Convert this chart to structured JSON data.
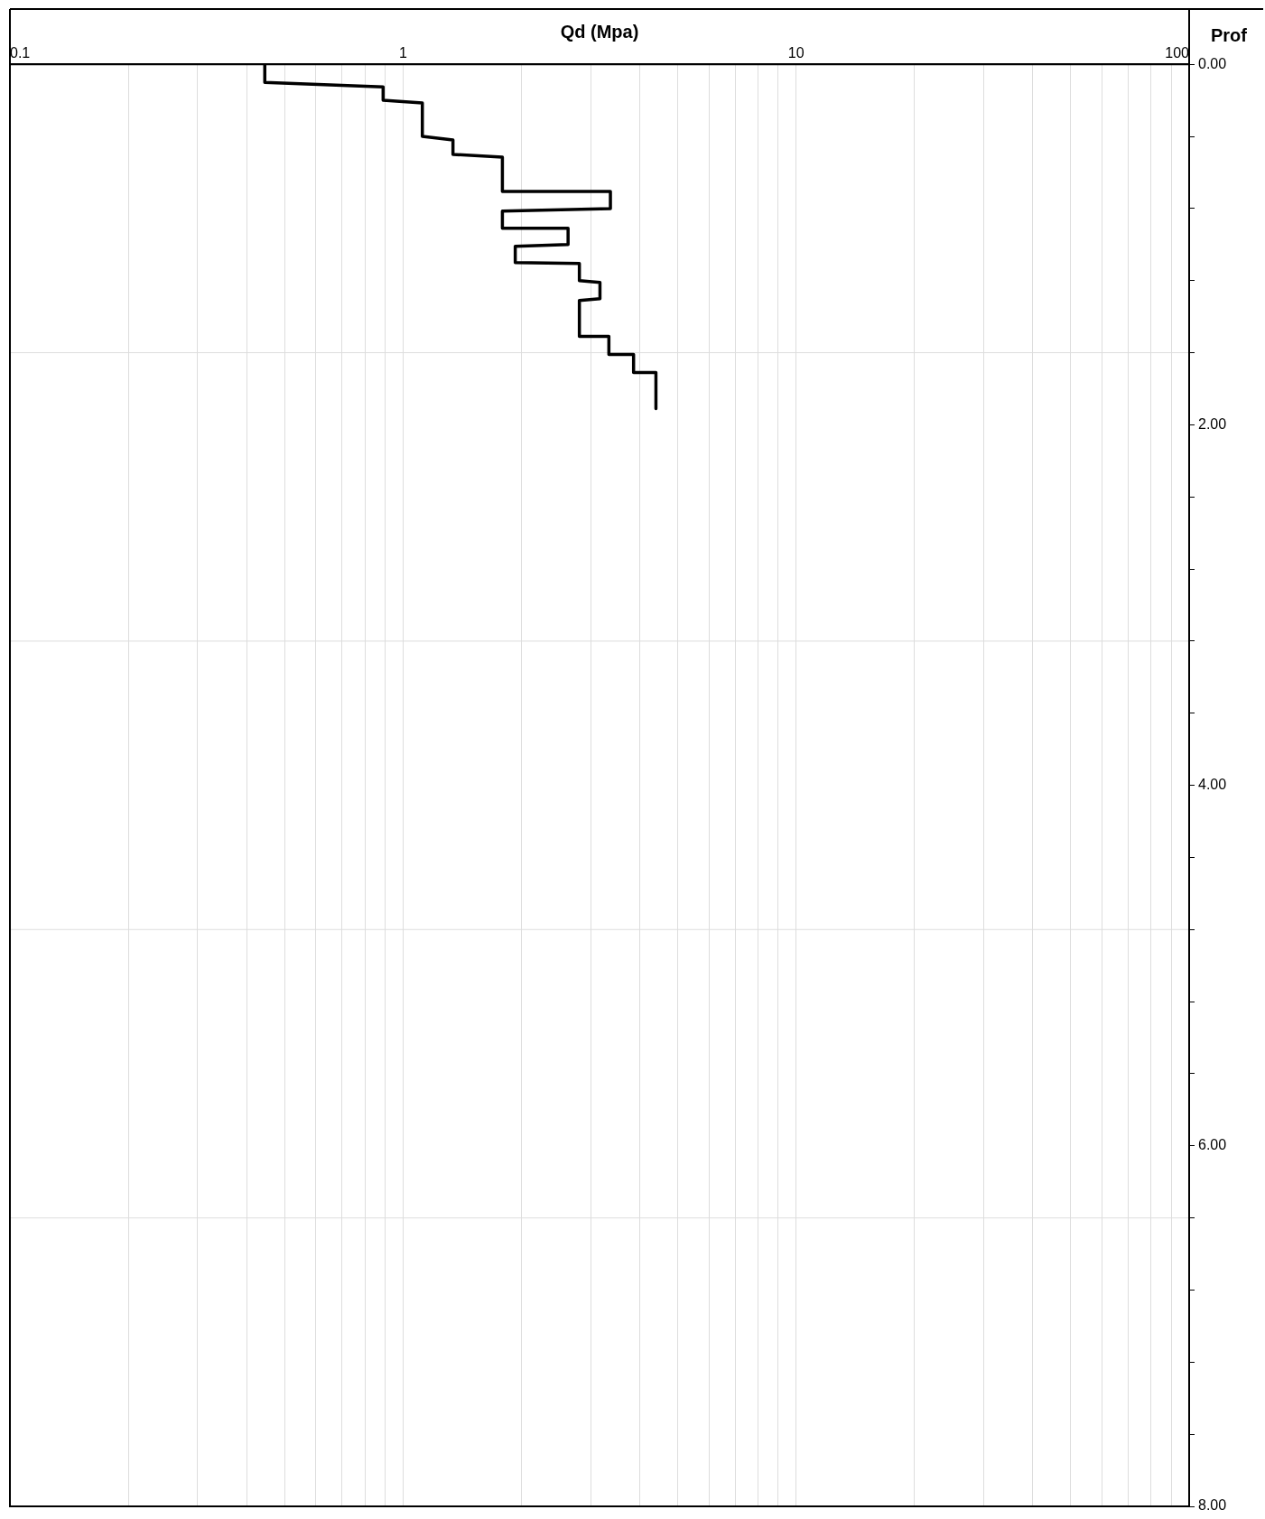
{
  "chart_data": {
    "type": "line",
    "xlabel": "Qd (Mpa)",
    "ylabel": "Prof",
    "log": "x",
    "grid": "x",
    "marker": "none",
    "line_style": "solid",
    "xlim": [
      0.1,
      100
    ],
    "xticks": [
      {
        "value": 0.1,
        "label": "0.1"
      },
      {
        "value": 0.2,
        "label": null
      },
      {
        "value": 0.3,
        "label": null
      },
      {
        "value": 0.4,
        "label": null
      },
      {
        "value": 0.5,
        "label": null
      },
      {
        "value": 0.6,
        "label": null
      },
      {
        "value": 0.7,
        "label": null
      },
      {
        "value": 0.8,
        "label": null
      },
      {
        "value": 0.9,
        "label": null
      },
      {
        "value": 1,
        "label": "1"
      },
      {
        "value": 2,
        "label": null
      },
      {
        "value": 3,
        "label": null
      },
      {
        "value": 4,
        "label": null
      },
      {
        "value": 5,
        "label": null
      },
      {
        "value": 6,
        "label": null
      },
      {
        "value": 7,
        "label": null
      },
      {
        "value": 8,
        "label": null
      },
      {
        "value": 9,
        "label": null
      },
      {
        "value": 10,
        "label": "10"
      },
      {
        "value": 20,
        "label": null
      },
      {
        "value": 30,
        "label": null
      },
      {
        "value": 40,
        "label": null
      },
      {
        "value": 50,
        "label": null
      },
      {
        "value": 60,
        "label": null
      },
      {
        "value": 70,
        "label": null
      },
      {
        "value": 80,
        "label": null
      },
      {
        "value": 90,
        "label": null
      },
      {
        "value": 100,
        "label": "100"
      }
    ],
    "ylim": [
      8,
      0
    ],
    "yticks": [
      {
        "value": 0,
        "label": "0.00"
      },
      {
        "value": 0.4,
        "label": null
      },
      {
        "value": 0.8,
        "label": null
      },
      {
        "value": 1.2,
        "label": null
      },
      {
        "value": 1.6,
        "label": null
      },
      {
        "value": 2,
        "label": "2.00"
      },
      {
        "value": 2.4,
        "label": null
      },
      {
        "value": 2.8,
        "label": null
      },
      {
        "value": 3.2,
        "label": null
      },
      {
        "value": 3.6,
        "label": null
      },
      {
        "value": 4,
        "label": "4.00"
      },
      {
        "value": 4.4,
        "label": null
      },
      {
        "value": 4.8,
        "label": null
      },
      {
        "value": 5.2,
        "label": null
      },
      {
        "value": 5.6,
        "label": null
      },
      {
        "value": 6,
        "label": "6.00"
      },
      {
        "value": 6.4,
        "label": null
      },
      {
        "value": 6.8,
        "label": null
      },
      {
        "value": 7.2,
        "label": null
      },
      {
        "value": 7.6,
        "label": null
      },
      {
        "value": 8,
        "label": "8.00"
      }
    ],
    "ref_lines": [
      {
        "axis": "y",
        "value": 1.6,
        "color": "#dddddd"
      },
      {
        "axis": "y",
        "value": 3.2,
        "color": "#dddddd"
      },
      {
        "axis": "y",
        "value": 4.8,
        "color": "#dddddd"
      },
      {
        "axis": "y",
        "value": 6.4,
        "color": "#dddddd"
      }
    ],
    "series": [
      {
        "color": "#000000",
        "x": [
          0.445,
          0.445,
          0.89,
          0.89,
          1.12,
          1.12,
          1.34,
          1.34,
          1.79,
          1.79,
          3.37,
          3.37,
          1.79,
          1.79,
          2.63,
          2.63,
          1.93,
          1.93,
          2.81,
          2.81,
          3.17,
          3.17,
          2.81,
          2.81,
          3.34,
          3.34,
          3.86,
          3.86,
          4.4,
          4.4
        ],
        "values": [
          0,
          0.1,
          0.125,
          0.2,
          0.215,
          0.4,
          0.42,
          0.5,
          0.515,
          0.705,
          0.705,
          0.8,
          0.815,
          0.91,
          0.91,
          1.0,
          1.01,
          1.1,
          1.105,
          1.2,
          1.21,
          1.3,
          1.31,
          1.51,
          1.51,
          1.61,
          1.61,
          1.71,
          1.71,
          1.91
        ]
      }
    ]
  }
}
